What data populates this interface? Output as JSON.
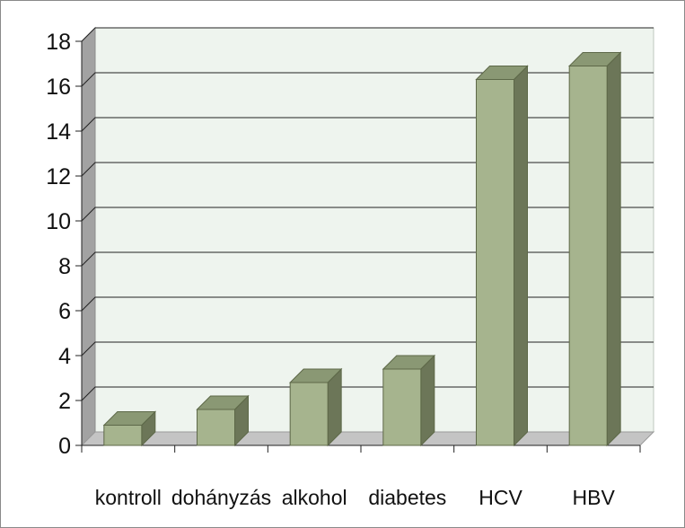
{
  "chart_data": {
    "type": "bar",
    "style": "3d-column",
    "categories": [
      "kontroll",
      "dohányzás",
      "alkohol",
      "diabetes",
      "HCV",
      "HBV"
    ],
    "values": [
      0.9,
      1.6,
      2.8,
      3.4,
      16.3,
      16.9
    ],
    "ylim": [
      0,
      18
    ],
    "yticks": [
      "0",
      "2",
      "4",
      "6",
      "8",
      "10",
      "12",
      "14",
      "16",
      "18"
    ],
    "grid": true,
    "legend": "none",
    "colors": {
      "bar_front": "#a6b48e",
      "bar_top": "#8a9874",
      "bar_side": "#6c7658",
      "bar_edge": "#5d6848",
      "back_wall": "#eef4ee",
      "side_wall": "#a2a2a2",
      "floor": "#c4c4c4",
      "grid": "#222222"
    }
  }
}
